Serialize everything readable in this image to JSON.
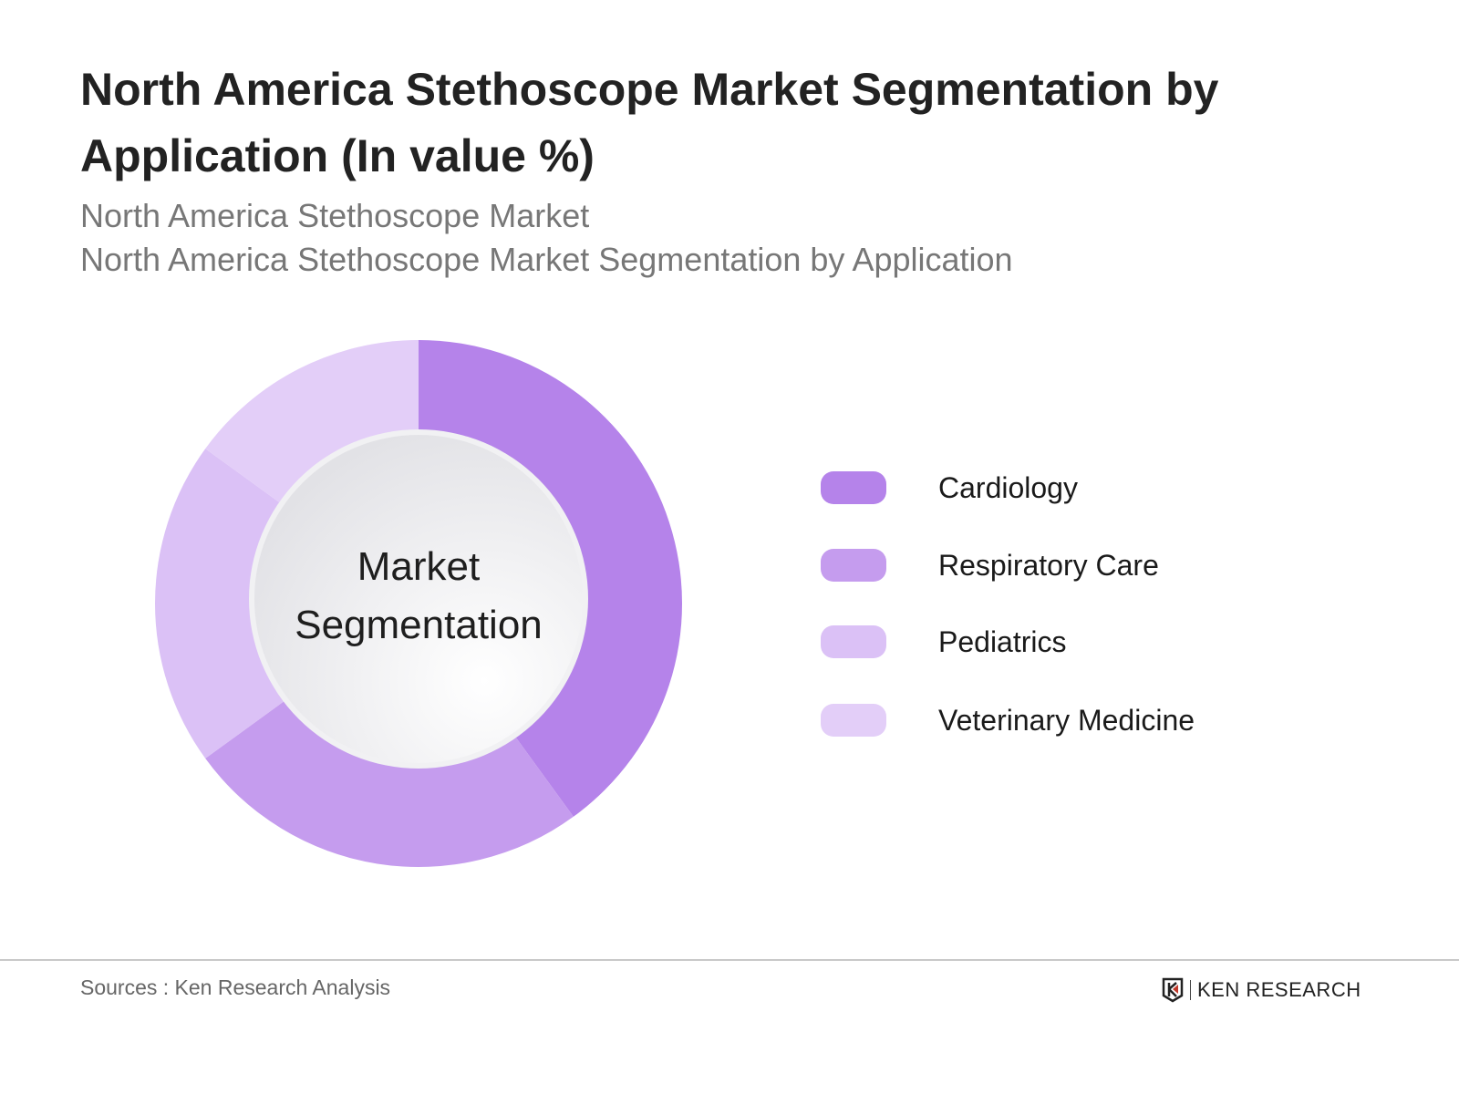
{
  "header": {
    "title": "North America Stethoscope Market Segmentation by Application (In value %)",
    "subtitle_1": "North America Stethoscope Market",
    "subtitle_2": "North America Stethoscope Market Segmentation by Application"
  },
  "chart_data": {
    "type": "pie",
    "variant": "donut",
    "center_label_1": "Market",
    "center_label_2": "Segmentation",
    "categories": [
      "Cardiology",
      "Respiratory Care",
      "Pediatrics",
      "Veterinary Medicine"
    ],
    "values": [
      40,
      25,
      20,
      15
    ],
    "unit": "%",
    "colors": [
      "#b583ea",
      "#c59cee",
      "#dbc1f6",
      "#e3cef8"
    ],
    "legend_placement": "right"
  },
  "footer": {
    "source": "Sources : Ken Research Analysis",
    "logo_text": "KEN RESEARCH"
  }
}
